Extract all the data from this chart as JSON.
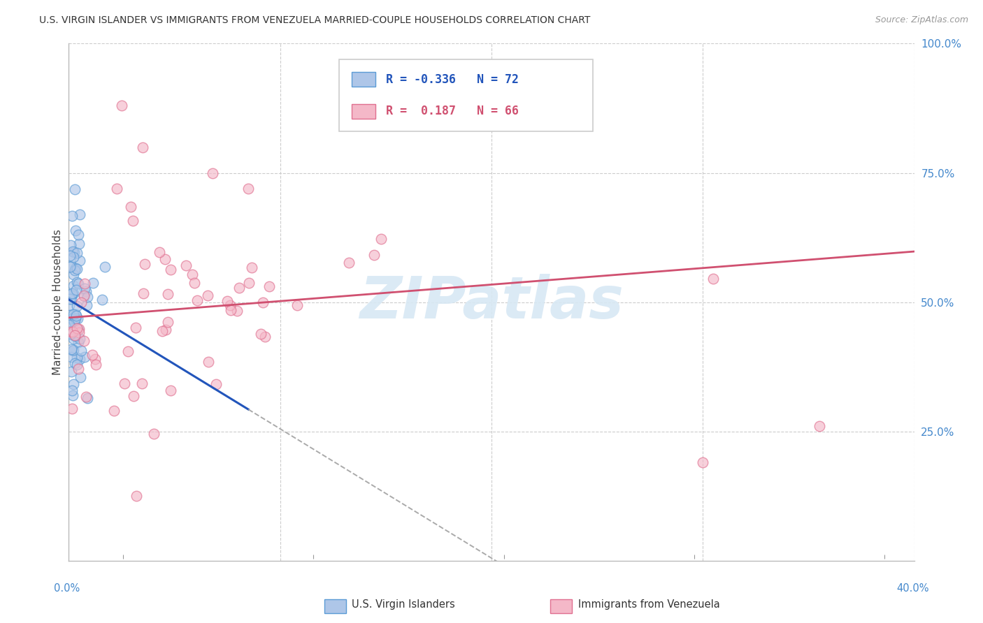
{
  "title": "U.S. VIRGIN ISLANDER VS IMMIGRANTS FROM VENEZUELA MARRIED-COUPLE HOUSEHOLDS CORRELATION CHART",
  "source": "Source: ZipAtlas.com",
  "ylabel": "Married-couple Households",
  "series1_name": "U.S. Virgin Islanders",
  "series2_name": "Immigrants from Venezuela",
  "series1_fill": "#aec6e8",
  "series1_edge": "#5b9bd5",
  "series2_fill": "#f4b8c8",
  "series2_edge": "#e07090",
  "trend1_color": "#2255bb",
  "trend2_color": "#d05070",
  "trend_dash_color": "#aaaaaa",
  "watermark": "ZIPatlas",
  "watermark_color": "#d8e8f4",
  "grid_color": "#cccccc",
  "right_tick_color": "#4488cc",
  "xlim": [
    0.0,
    0.4
  ],
  "ylim": [
    0.0,
    1.0
  ],
  "legend_R1": "R = -0.336",
  "legend_N1": "N = 72",
  "legend_R2": "R =  0.187",
  "legend_N2": "N = 66",
  "legend_color1": "#2255bb",
  "legend_color2": "#d05070"
}
